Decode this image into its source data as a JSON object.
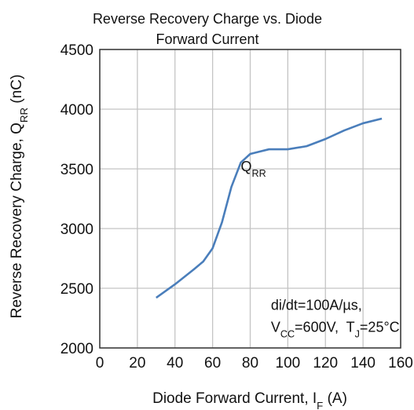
{
  "chart_data": {
    "type": "line",
    "title": [
      "Reverse Recovery Charge vs. Diode",
      "Forward Current"
    ],
    "x_label_parts": [
      "Diode Forward Current, I",
      "F",
      " (A)"
    ],
    "y_label_parts": [
      "Reverse Recovery Charge, Q",
      "RR",
      " (nC)"
    ],
    "x": [
      30,
      40,
      50,
      55,
      60,
      65,
      70,
      75,
      80,
      85,
      90,
      100,
      110,
      120,
      130,
      140,
      150
    ],
    "series": [
      {
        "color": "#4a7ebb",
        "values": [
          2421,
          2533,
          2658,
          2724,
          2835,
          3053,
          3349,
          3553,
          3625,
          3645,
          3664,
          3664,
          3690,
          3750,
          3822,
          3882,
          3921
        ]
      }
    ],
    "xlim": [
      0,
      160
    ],
    "xticks": [
      0,
      20,
      40,
      60,
      80,
      100,
      120,
      140,
      160
    ],
    "ylim": [
      2000,
      4500
    ],
    "yticks": [
      2000,
      2500,
      3000,
      3500,
      4000,
      4500
    ],
    "grid": true,
    "annotations": [
      {
        "parts": [
          "Q",
          "RR"
        ],
        "x": 75,
        "y": 3480
      },
      {
        "lines": [
          [
            "di/dt=100A/µs,"
          ],
          [
            "V",
            "CC",
            "=600V,  T",
            "J",
            "=25°C"
          ]
        ],
        "x": 91,
        "y": 2320
      }
    ]
  }
}
